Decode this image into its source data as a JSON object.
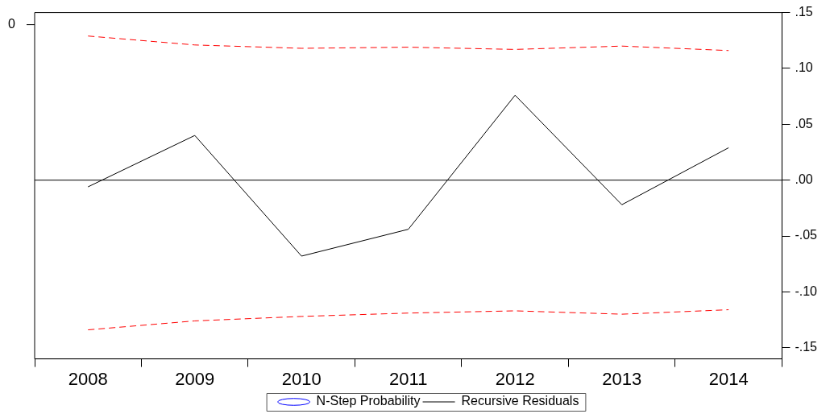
{
  "chart_data": {
    "type": "line",
    "categories": [
      "2008",
      "2009",
      "2010",
      "2011",
      "2012",
      "2013",
      "2014"
    ],
    "series": [
      {
        "name": "N-Step Probability",
        "type": "scatter",
        "axis": "y2",
        "color": "#0000ff",
        "values": [
          null,
          null,
          null,
          null,
          null,
          null,
          null
        ]
      },
      {
        "name": "Recursive Residuals",
        "axis": "y2",
        "color": "#000000",
        "values": [
          -0.006,
          0.04,
          -0.068,
          -0.044,
          0.076,
          -0.022,
          0.029
        ]
      },
      {
        "axis": "y2",
        "color": "#ff0000",
        "line_style": "dashed",
        "values": [
          0.129,
          0.121,
          0.118,
          0.119,
          0.117,
          0.12,
          0.116
        ]
      },
      {
        "axis": "y2",
        "color": "#ff0000",
        "line_style": "dashed",
        "values": [
          -0.134,
          -0.126,
          -0.122,
          -0.119,
          -0.117,
          -0.12,
          -0.116
        ]
      }
    ],
    "annotations": [
      "0"
    ],
    "y2lim": [
      -0.16,
      0.15
    ],
    "y2ticks": [
      {
        "value": 0.15,
        "label": ".15"
      },
      {
        "value": 0.1,
        "label": ".10"
      },
      {
        "value": 0.05,
        "label": ".05"
      },
      {
        "value": 0,
        "label": ".00"
      },
      {
        "value": -0.05,
        "label": "-.05"
      },
      {
        "value": -0.1,
        "label": "-.10"
      },
      {
        "value": -0.15,
        "label": "-.15"
      }
    ],
    "ref_lines": [
      {
        "axis": "y2",
        "value": 0,
        "color": "#000000"
      }
    ],
    "grid": false,
    "legend": "bottom",
    "marker": "none",
    "line_style": "solid"
  }
}
